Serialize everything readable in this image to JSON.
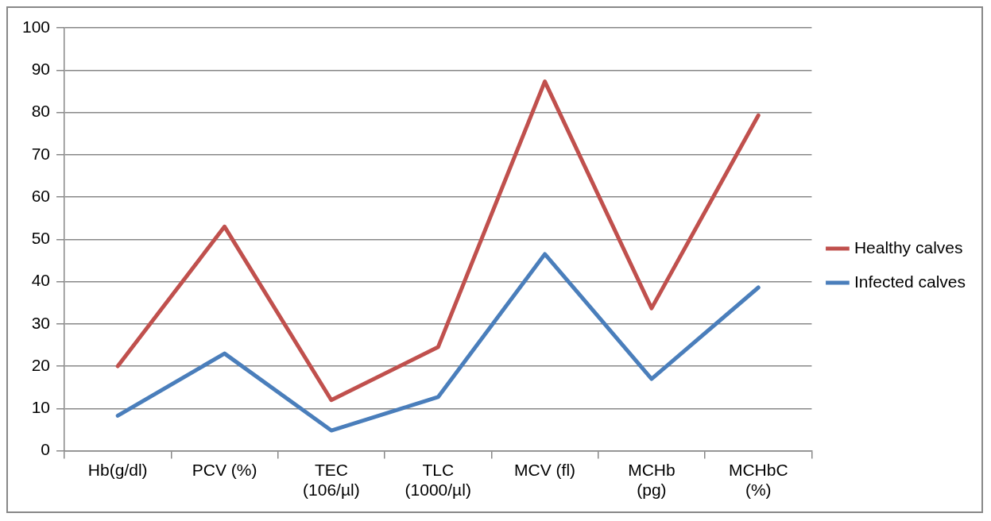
{
  "chart_data": {
    "type": "line",
    "categories": [
      "Hb(g/dl)",
      "PCV (%)",
      "TEC (106/µl)",
      "TLC (1000/µl)",
      "MCV (fl)",
      "MCHb (pg)",
      "MCHbC (%)"
    ],
    "series": [
      {
        "name": "Healthy calves",
        "color": "#c0504d",
        "values": [
          20,
          53,
          12,
          24.5,
          87.3,
          33.7,
          79.3
        ]
      },
      {
        "name": "Infected calves",
        "color": "#4a7ebb",
        "values": [
          8.3,
          23,
          4.8,
          12.7,
          46.5,
          17,
          38.6
        ]
      }
    ],
    "ylim": [
      0,
      100
    ],
    "yticks": [
      0,
      10,
      20,
      30,
      40,
      50,
      60,
      70,
      80,
      90,
      100
    ],
    "grid": "y",
    "legend": "right",
    "marker": "none",
    "line_style": "solid"
  }
}
